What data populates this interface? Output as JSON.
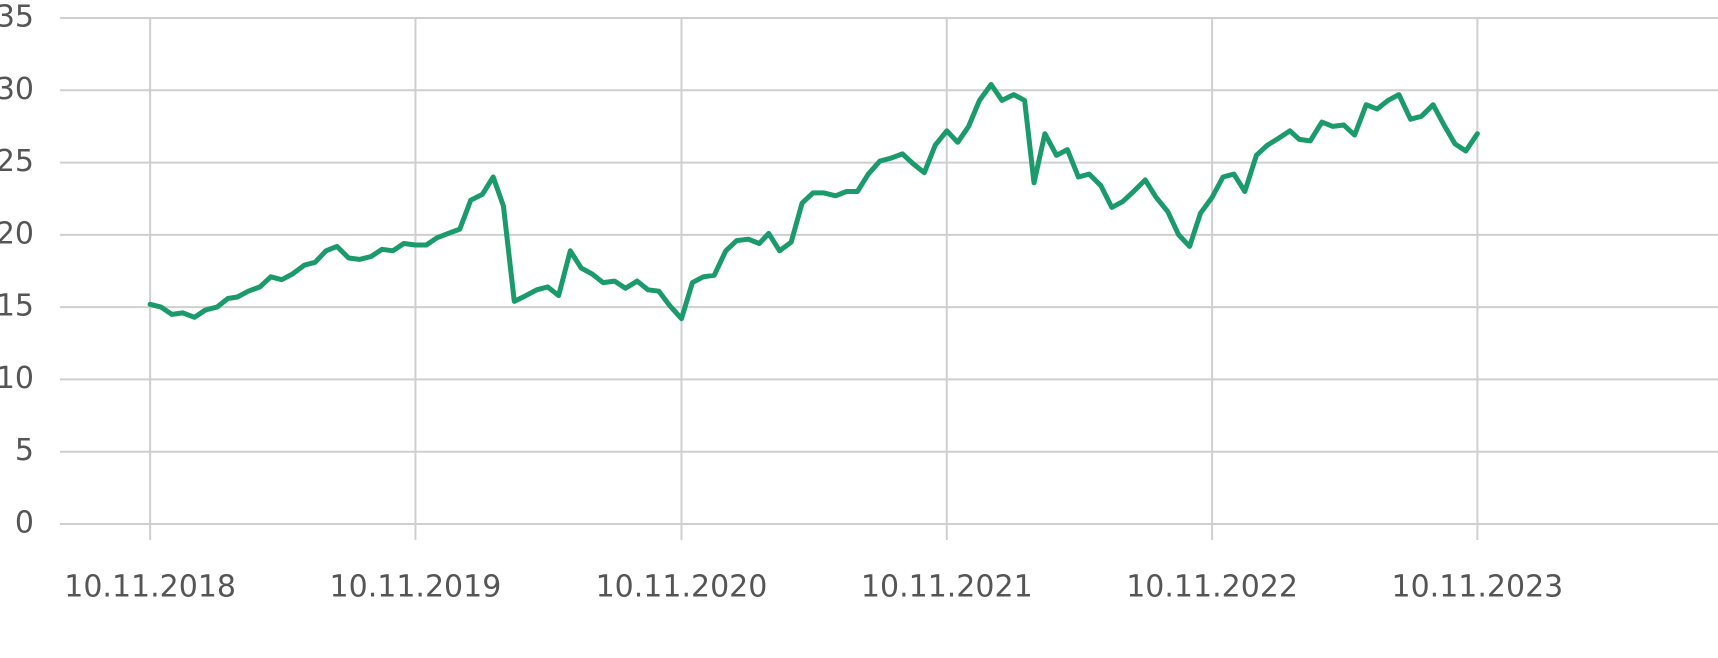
{
  "chart_data": {
    "type": "line",
    "x": [
      "10.11.2018",
      "25.11.2018",
      "10.12.2018",
      "25.12.2018",
      "10.01.2019",
      "25.01.2019",
      "10.02.2019",
      "25.02.2019",
      "10.03.2019",
      "25.03.2019",
      "10.04.2019",
      "25.04.2019",
      "10.05.2019",
      "25.05.2019",
      "10.06.2019",
      "25.06.2019",
      "10.07.2019",
      "25.07.2019",
      "10.08.2019",
      "25.08.2019",
      "10.09.2019",
      "25.09.2019",
      "10.10.2019",
      "25.10.2019",
      "10.11.2019",
      "25.11.2019",
      "10.12.2019",
      "25.12.2019",
      "10.01.2020",
      "25.01.2020",
      "10.02.2020",
      "25.02.2020",
      "10.03.2020",
      "25.03.2020",
      "10.04.2020",
      "25.04.2020",
      "10.05.2020",
      "25.05.2020",
      "10.06.2020",
      "25.06.2020",
      "10.07.2020",
      "25.07.2020",
      "10.08.2020",
      "25.08.2020",
      "10.09.2020",
      "25.09.2020",
      "10.10.2020",
      "25.10.2020",
      "10.11.2020",
      "25.11.2020",
      "10.12.2020",
      "25.12.2020",
      "10.01.2021",
      "25.01.2021",
      "10.02.2021",
      "25.02.2021",
      "10.03.2021",
      "25.03.2021",
      "10.04.2021",
      "25.04.2021",
      "10.05.2021",
      "25.05.2021",
      "10.06.2021",
      "25.06.2021",
      "10.07.2021",
      "25.07.2021",
      "10.08.2021",
      "25.08.2021",
      "10.09.2021",
      "25.09.2021",
      "10.10.2021",
      "25.10.2021",
      "10.11.2021",
      "25.11.2021",
      "10.12.2021",
      "25.12.2021",
      "10.01.2022",
      "25.01.2022",
      "10.02.2022",
      "25.02.2022",
      "10.03.2022",
      "25.03.2022",
      "10.04.2022",
      "25.04.2022",
      "10.05.2022",
      "25.05.2022",
      "10.06.2022",
      "25.06.2022",
      "10.07.2022",
      "25.07.2022",
      "10.08.2022",
      "25.08.2022",
      "10.09.2022",
      "25.09.2022",
      "10.10.2022",
      "25.10.2022",
      "10.11.2022",
      "25.11.2022",
      "10.12.2022",
      "25.12.2022",
      "10.01.2023",
      "25.01.2023",
      "10.02.2023",
      "25.02.2023",
      "10.03.2023",
      "25.03.2023",
      "10.04.2023",
      "25.04.2023",
      "10.05.2023",
      "25.05.2023",
      "10.06.2023",
      "25.06.2023",
      "10.07.2023",
      "25.07.2023",
      "10.08.2023",
      "25.08.2023",
      "10.09.2023",
      "25.09.2023",
      "10.10.2023",
      "25.10.2023",
      "10.11.2023"
    ],
    "series": [
      {
        "color": "#1b9a6c",
        "values": [
          15.2,
          15.0,
          14.5,
          14.6,
          14.3,
          14.8,
          15.0,
          15.6,
          15.7,
          16.1,
          16.4,
          17.1,
          16.9,
          17.3,
          17.9,
          18.1,
          18.9,
          19.2,
          18.4,
          18.3,
          18.5,
          19.0,
          18.9,
          19.4,
          19.3,
          19.3,
          19.8,
          20.1,
          20.4,
          22.4,
          22.8,
          24.0,
          22.0,
          15.4,
          15.8,
          16.2,
          16.4,
          15.8,
          18.9,
          17.7,
          17.3,
          16.7,
          16.8,
          16.3,
          16.8,
          16.2,
          16.1,
          15.1,
          14.2,
          16.7,
          17.1,
          17.2,
          18.9,
          19.6,
          19.7,
          19.4,
          20.1,
          18.9,
          19.5,
          22.2,
          22.9,
          22.9,
          22.7,
          23.0,
          23.0,
          24.2,
          25.1,
          25.3,
          25.6,
          24.9,
          24.3,
          26.2,
          27.2,
          26.4,
          27.5,
          29.3,
          30.4,
          29.3,
          29.7,
          29.3,
          23.6,
          27.0,
          25.5,
          25.9,
          24.0,
          24.2,
          23.4,
          21.9,
          22.3,
          23.0,
          23.8,
          22.6,
          21.6,
          20.0,
          19.2,
          21.5,
          22.6,
          24.0,
          24.2,
          23.0,
          25.5,
          26.2,
          26.7,
          27.2,
          26.6,
          26.5,
          27.8,
          27.5,
          27.6,
          26.9,
          29.0,
          28.7,
          29.3,
          29.7,
          28.0,
          28.2,
          29.0,
          27.6,
          26.3,
          25.8,
          27.0
        ]
      }
    ],
    "xlim": [
      "09.07.2018",
      "06.10.2024"
    ],
    "xticks": [
      "10.11.2018",
      "10.11.2019",
      "10.11.2020",
      "10.11.2021",
      "10.11.2022",
      "10.11.2023"
    ],
    "ylim": [
      0,
      35
    ],
    "yticks": [
      0,
      5,
      10,
      15,
      20,
      25,
      30,
      35
    ],
    "grid": true
  }
}
